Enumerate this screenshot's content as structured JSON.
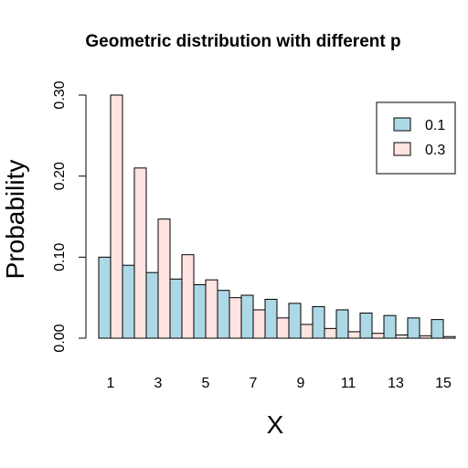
{
  "chart_data": {
    "type": "bar",
    "title": "Geometric distribution with different p",
    "xlabel": "X",
    "ylabel": "Probability",
    "categories": [
      "1",
      "2",
      "3",
      "4",
      "5",
      "6",
      "7",
      "8",
      "9",
      "10",
      "11",
      "12",
      "13",
      "14",
      "15"
    ],
    "x_tick_labels": [
      "1",
      "3",
      "5",
      "7",
      "9",
      "11",
      "13",
      "15"
    ],
    "y_ticks": [
      "0.00",
      "0.10",
      "0.20",
      "0.30"
    ],
    "ylim": [
      0,
      0.3
    ],
    "legend_position": "top-right",
    "grid": false,
    "series": [
      {
        "name": "0.1",
        "color": "#add8e6",
        "values": [
          0.1,
          0.09,
          0.081,
          0.073,
          0.066,
          0.059,
          0.053,
          0.048,
          0.043,
          0.039,
          0.035,
          0.031,
          0.028,
          0.025,
          0.023
        ]
      },
      {
        "name": "0.3",
        "color": "#ffe4e1",
        "values": [
          0.3,
          0.21,
          0.147,
          0.103,
          0.072,
          0.05,
          0.035,
          0.025,
          0.017,
          0.012,
          0.008,
          0.006,
          0.004,
          0.003,
          0.002
        ]
      }
    ]
  }
}
